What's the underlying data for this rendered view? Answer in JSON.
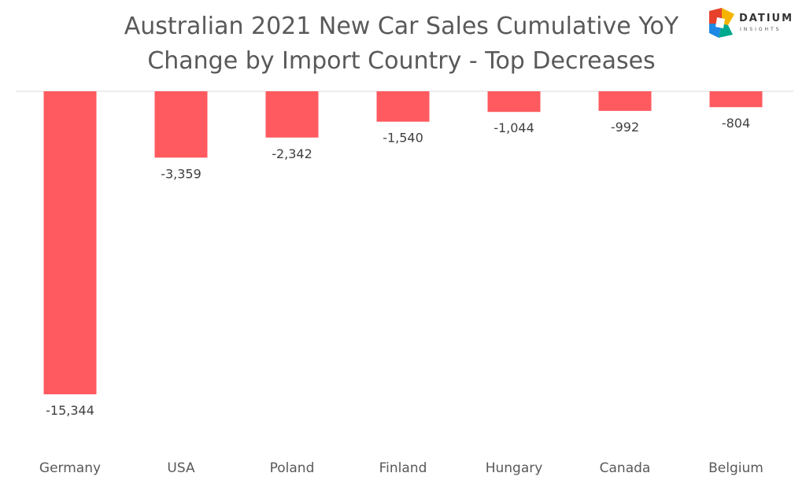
{
  "title": {
    "line1": "Australian 2021 New Car Sales Cumulative YoY",
    "line2": "Change by Import Country - Top Decreases"
  },
  "logo": {
    "name": "DATIUM",
    "subtitle": "INSIGHTS"
  },
  "colors": {
    "bar": "#FF5A5F",
    "axis": "#D9D9D9",
    "text": "#595959"
  },
  "chart_data": {
    "type": "bar",
    "title": "Australian 2021 New Car Sales Cumulative YoY Change by Import Country - Top Decreases",
    "categories": [
      "Germany",
      "USA",
      "Poland",
      "Finland",
      "Hungary",
      "Canada",
      "Belgium"
    ],
    "values": [
      -15344,
      -3359,
      -2342,
      -1540,
      -1044,
      -992,
      -804
    ],
    "value_labels": [
      "-15,344",
      "-3,359",
      "-2,342",
      "-1,540",
      "-1,044",
      "-992",
      "-804"
    ],
    "ylim": [
      -15344,
      0
    ],
    "grid": false,
    "legend": "none"
  }
}
